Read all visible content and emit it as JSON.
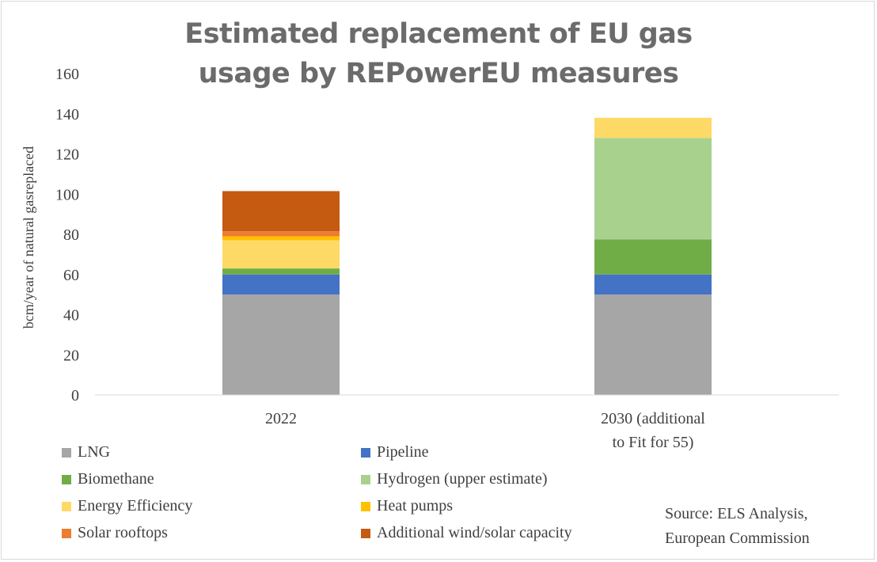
{
  "chart_data": {
    "type": "bar",
    "stacked": true,
    "title_line1": "Estimated replacement of EU gas",
    "title_line2": "usage by REPowerEU measures",
    "ylabel": "bcm/year of natural gasreplaced",
    "xlabel": "",
    "ylim": [
      0,
      160
    ],
    "yticks": [
      0,
      20,
      40,
      60,
      80,
      100,
      120,
      140,
      160
    ],
    "categories": [
      {
        "line1": "2022",
        "line2": ""
      },
      {
        "line1": "2030 (additional",
        "line2": "to Fit for 55)"
      }
    ],
    "grid": false,
    "legend_position": "bottom-left",
    "series": [
      {
        "name": "LNG",
        "color": "#a6a6a6",
        "values": [
          50,
          50
        ]
      },
      {
        "name": "Pipeline",
        "color": "#4472c4",
        "values": [
          10,
          10
        ]
      },
      {
        "name": "Biomethane",
        "color": "#70ad47",
        "values": [
          3,
          17.5
        ]
      },
      {
        "name": "Hydrogen (upper estimate)",
        "color": "#a9d18e",
        "values": [
          0,
          50.5
        ]
      },
      {
        "name": "Energy Efficiency",
        "color": "#ffd966",
        "values": [
          14,
          10
        ]
      },
      {
        "name": "Heat pumps",
        "color": "#ffc000",
        "values": [
          2,
          0
        ]
      },
      {
        "name": "Solar rooftops",
        "color": "#ed7d31",
        "values": [
          2.5,
          0
        ]
      },
      {
        "name": "Additional wind/solar capacity",
        "color": "#c55a11",
        "values": [
          20,
          0
        ]
      }
    ]
  },
  "source": {
    "line1": "Source: ELS Analysis,",
    "line2": "European Commission"
  }
}
